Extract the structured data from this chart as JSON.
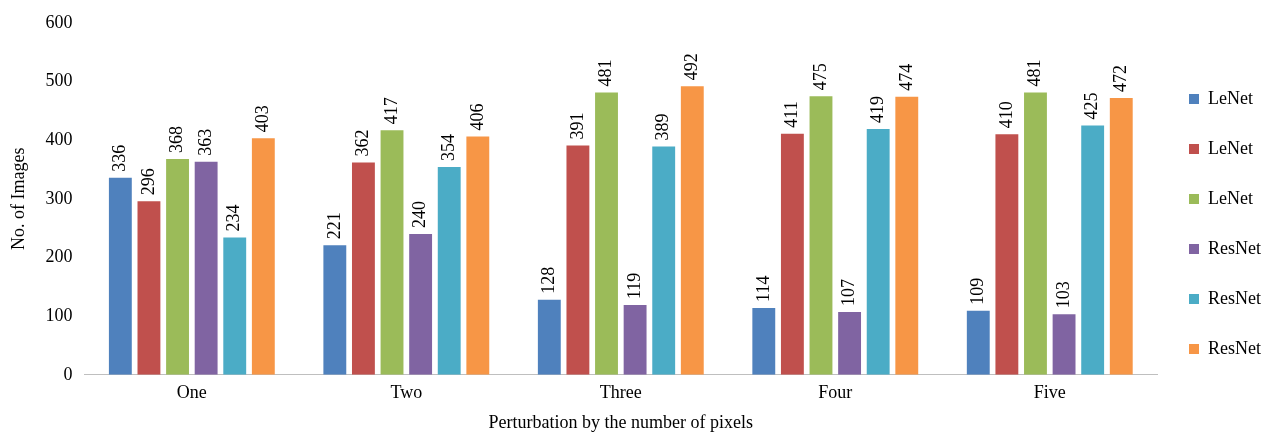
{
  "chart_data": {
    "type": "bar",
    "xlabel": "Perturbation by the number of pixels",
    "ylabel": "No. of Images",
    "categories": [
      "One",
      "Two",
      "Three",
      "Four",
      "Five"
    ],
    "series": [
      {
        "name": "LeNet",
        "color": "#4f81bd",
        "values": [
          336,
          221,
          128,
          114,
          109
        ]
      },
      {
        "name": "LeNet",
        "color": "#c0504d",
        "values": [
          296,
          362,
          391,
          411,
          410
        ]
      },
      {
        "name": "LeNet",
        "color": "#9bbb59",
        "values": [
          368,
          417,
          481,
          475,
          481
        ]
      },
      {
        "name": "ResNet",
        "color": "#8064a2",
        "values": [
          363,
          240,
          119,
          107,
          103
        ]
      },
      {
        "name": "ResNet",
        "color": "#4bacc6",
        "values": [
          234,
          354,
          389,
          419,
          425
        ]
      },
      {
        "name": "ResNet",
        "color": "#f79646",
        "values": [
          403,
          406,
          492,
          474,
          472
        ]
      }
    ],
    "ylim": [
      0,
      600
    ],
    "yticks": [
      0,
      100,
      200,
      300,
      400,
      500,
      600
    ],
    "grid": false,
    "legend": "right",
    "data_labels": true
  }
}
